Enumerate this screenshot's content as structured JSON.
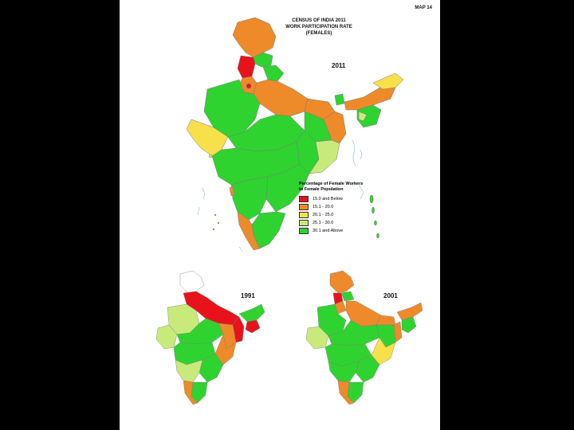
{
  "map_number": "MAP 14",
  "title": {
    "line1": "CENSUS OF INDIA 2011",
    "line2": "WORK PARTICIPATION RATE",
    "line3": "(FEMALES)"
  },
  "maps": {
    "main_year": "2011",
    "inset1_year": "1991",
    "inset2_year": "2001"
  },
  "legend": {
    "title_line1": "Percentage of Female Workers",
    "title_line2": "to Female Population",
    "items": [
      {
        "label": "15.0 and Below",
        "color": "#e8121b"
      },
      {
        "label": "15.1 - 20.0",
        "color": "#ee8a2a"
      },
      {
        "label": "20.1 - 25.0",
        "color": "#f7e04a"
      },
      {
        "label": "25.1 - 30.0",
        "color": "#c8ea7a"
      },
      {
        "label": "30.1 and Above",
        "color": "#2fd32f"
      }
    ]
  },
  "colors": {
    "background": "#000000",
    "sheet": "#ffffff",
    "sea_marks": "#7aa6c9"
  }
}
